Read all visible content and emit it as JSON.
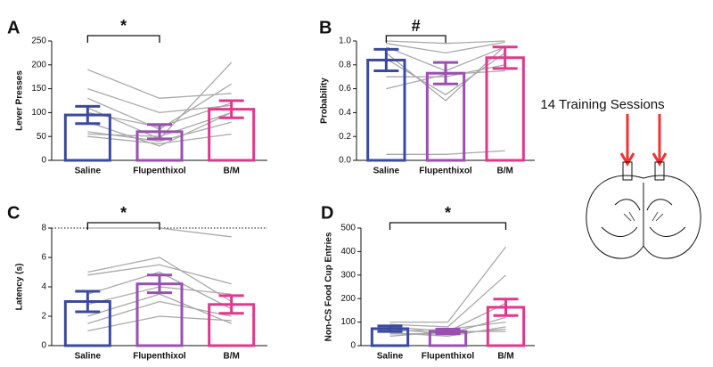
{
  "chart_data": [
    {
      "type": "bar",
      "panel": "A",
      "ylabel": "Lever Presses",
      "categories": [
        "Saline",
        "Flupenthixol",
        "B/M"
      ],
      "values": [
        95,
        60,
        107
      ],
      "errors": [
        18,
        15,
        18
      ],
      "colors": [
        "#3b4aa0",
        "#9a4fb2",
        "#e0388c"
      ],
      "ylim": [
        0,
        250
      ],
      "yticks": [
        0,
        50,
        100,
        150,
        200,
        250
      ],
      "subjects": [
        [
          190,
          130,
          140
        ],
        [
          150,
          100,
          115
        ],
        [
          130,
          65,
          160
        ],
        [
          110,
          45,
          205
        ],
        [
          100,
          70,
          120
        ],
        [
          80,
          30,
          100
        ],
        [
          60,
          40,
          80
        ],
        [
          55,
          50,
          100
        ],
        [
          50,
          35,
          55
        ]
      ],
      "bracket": [
        "Saline",
        "Flupenthixol"
      ],
      "annotation": "*"
    },
    {
      "type": "bar",
      "panel": "B",
      "ylabel": "Probability",
      "categories": [
        "Saline",
        "Flupenthixol",
        "B/M"
      ],
      "values": [
        0.84,
        0.73,
        0.86
      ],
      "errors": [
        0.09,
        0.09,
        0.09
      ],
      "colors": [
        "#3b4aa0",
        "#9a4fb2",
        "#e0388c"
      ],
      "ylim": [
        0,
        1
      ],
      "yticks": [
        {
          "value": 0,
          "label": "0.0"
        },
        0.2,
        0.4,
        0.6,
        0.8,
        {
          "value": 1,
          "label": "1.0"
        }
      ],
      "subjects": [
        [
          1,
          0.98,
          1
        ],
        [
          0.98,
          0.9,
          0.99
        ],
        [
          0.95,
          0.75,
          0.95
        ],
        [
          0.9,
          0.5,
          0.96
        ],
        [
          0.85,
          0.55,
          0.9
        ],
        [
          0.7,
          0.7,
          0.8
        ],
        [
          0.6,
          0.72,
          0.75
        ],
        [
          0.05,
          0.05,
          0.08
        ]
      ],
      "bracket": [
        "Saline",
        "Flupenthixol"
      ],
      "annotation": "#"
    },
    {
      "type": "bar",
      "panel": "C",
      "ylabel": "Latency (s)",
      "categories": [
        "Saline",
        "Flupenthixol",
        "B/M"
      ],
      "values": [
        3.0,
        4.2,
        2.8
      ],
      "errors": [
        0.7,
        0.6,
        0.6
      ],
      "colors": [
        "#3b4aa0",
        "#9a4fb2",
        "#e0388c"
      ],
      "ylim": [
        0,
        8
      ],
      "yticks": [
        0,
        2,
        4,
        6,
        8
      ],
      "reference_line": 8,
      "subjects": [
        [
          5,
          6,
          3
        ],
        [
          4.8,
          5.5,
          4.2
        ],
        [
          8,
          8,
          7.4
        ],
        [
          3.5,
          5,
          2.5
        ],
        [
          2.8,
          4,
          3.5
        ],
        [
          2,
          3.5,
          1.5
        ],
        [
          1.5,
          3,
          2
        ],
        [
          1,
          2,
          1.7
        ]
      ],
      "bracket": [
        "Saline",
        "Flupenthixol"
      ],
      "annotation": "*"
    },
    {
      "type": "bar",
      "panel": "D",
      "ylabel": "Non-CS Food Cup Entries",
      "categories": [
        "Saline",
        "Flupenthixol",
        "B/M"
      ],
      "values": [
        72,
        60,
        163
      ],
      "errors": [
        12,
        10,
        35
      ],
      "colors": [
        "#3b4aa0",
        "#9a4fb2",
        "#e0388c"
      ],
      "ylim": [
        0,
        500
      ],
      "yticks": [
        0,
        100,
        200,
        300,
        400,
        500
      ],
      "subjects": [
        [
          100,
          100,
          420
        ],
        [
          90,
          80,
          300
        ],
        [
          80,
          60,
          180
        ],
        [
          70,
          50,
          120
        ],
        [
          60,
          70,
          100
        ],
        [
          55,
          40,
          80
        ],
        [
          50,
          50,
          70
        ],
        [
          40,
          60,
          60
        ]
      ],
      "bracket": [
        "Saline",
        "B/M"
      ],
      "annotation": "*"
    }
  ],
  "diagram": {
    "label": "14 Training Sessions"
  }
}
